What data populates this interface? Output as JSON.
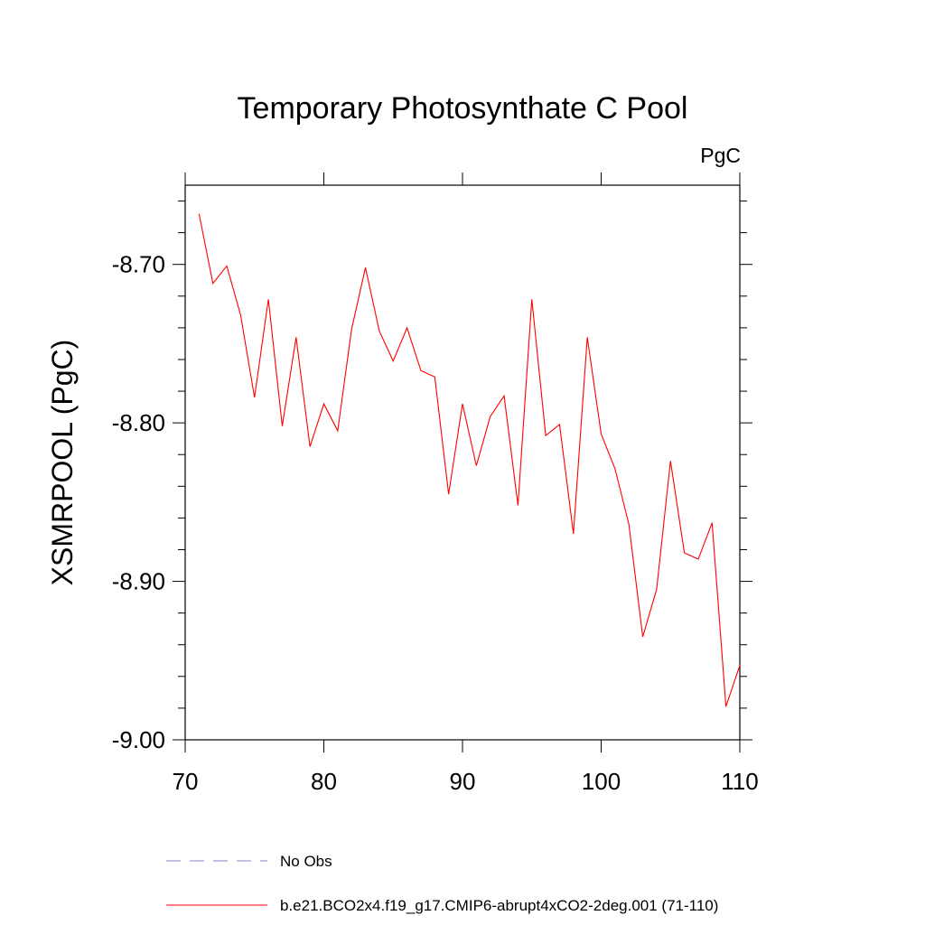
{
  "chart_data": {
    "type": "line",
    "title": "Temporary Photosynthate C Pool",
    "unit_label": "PgC",
    "xlabel": "",
    "ylabel": "XSMRPOOL  (PgC)",
    "xlim": [
      70,
      110
    ],
    "ylim": [
      -9.0,
      -8.65
    ],
    "x_ticks": [
      70,
      80,
      90,
      100,
      110
    ],
    "x_tick_labels": [
      "70",
      "80",
      "90",
      "100",
      "110"
    ],
    "y_ticks": [
      -9.0,
      -8.9,
      -8.8,
      -8.7
    ],
    "y_tick_labels": [
      "-9.00",
      "-8.90",
      "-8.80",
      "-8.70"
    ],
    "grid": false,
    "legend_position": "bottom",
    "legend": [
      {
        "label": "No Obs",
        "color": "#8080c0",
        "style": "dashed"
      },
      {
        "label": "b.e21.BCO2x4.f19_g17.CMIP6-abrupt4xCO2-2deg.001 (71-110)",
        "color": "#ff0000",
        "style": "solid"
      }
    ],
    "series": [
      {
        "name": "b.e21.BCO2x4.f19_g17.CMIP6-abrupt4xCO2-2deg.001 (71-110)",
        "color": "#ff0000",
        "x": [
          71,
          72,
          73,
          74,
          75,
          76,
          77,
          78,
          79,
          80,
          81,
          82,
          83,
          84,
          85,
          86,
          87,
          88,
          89,
          90,
          91,
          92,
          93,
          94,
          95,
          96,
          97,
          98,
          99,
          100,
          101,
          102,
          103,
          104,
          105,
          106,
          107,
          108,
          109,
          110
        ],
        "values": [
          -8.668,
          -8.712,
          -8.701,
          -8.732,
          -8.784,
          -8.722,
          -8.802,
          -8.746,
          -8.815,
          -8.788,
          -8.805,
          -8.741,
          -8.702,
          -8.742,
          -8.761,
          -8.74,
          -8.767,
          -8.771,
          -8.845,
          -8.788,
          -8.827,
          -8.796,
          -8.783,
          -8.852,
          -8.722,
          -8.808,
          -8.801,
          -8.87,
          -8.746,
          -8.807,
          -8.829,
          -8.864,
          -8.935,
          -8.905,
          -8.824,
          -8.882,
          -8.886,
          -8.863,
          -8.979,
          -8.953
        ]
      }
    ]
  }
}
